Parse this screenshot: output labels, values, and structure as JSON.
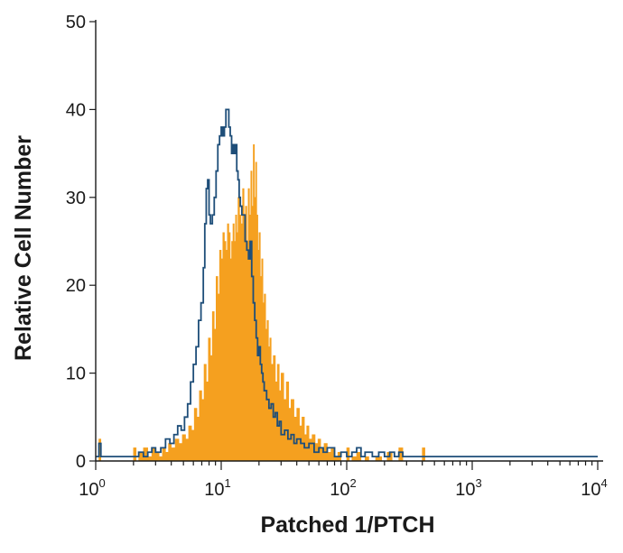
{
  "chart_data": {
    "type": "area",
    "title": "",
    "xlabel": "Patched 1/PTCH",
    "ylabel": "Relative Cell Number",
    "xscale": "log",
    "xlim": [
      1,
      10000
    ],
    "ylim": [
      0,
      50
    ],
    "grid": false,
    "legend": "none",
    "x_tick_labels": [
      {
        "base": "10",
        "exp": "0",
        "value": 1
      },
      {
        "base": "10",
        "exp": "1",
        "value": 10
      },
      {
        "base": "10",
        "exp": "2",
        "value": 100
      },
      {
        "base": "10",
        "exp": "3",
        "value": 1000
      },
      {
        "base": "10",
        "exp": "4",
        "value": 10000
      }
    ],
    "y_ticks": [
      0,
      10,
      20,
      30,
      40,
      50
    ],
    "series": [
      {
        "style": "filled",
        "color": "#F5A01F",
        "points": [
          [
            1.0,
            0
          ],
          [
            1.03,
            0
          ],
          [
            1.06,
            2.5
          ],
          [
            1.1,
            0
          ],
          [
            1.5,
            0
          ],
          [
            1.9,
            0
          ],
          [
            2.0,
            1.5
          ],
          [
            2.1,
            0
          ],
          [
            2.2,
            1
          ],
          [
            2.4,
            1.5
          ],
          [
            2.6,
            0.5
          ],
          [
            2.8,
            1.5
          ],
          [
            3.0,
            1
          ],
          [
            3.2,
            0.5
          ],
          [
            3.4,
            1.5
          ],
          [
            3.6,
            1
          ],
          [
            3.8,
            2
          ],
          [
            4.0,
            1.5
          ],
          [
            4.3,
            2.5
          ],
          [
            4.6,
            2
          ],
          [
            4.9,
            3
          ],
          [
            5.2,
            2.5
          ],
          [
            5.5,
            4
          ],
          [
            5.8,
            3.5
          ],
          [
            6.1,
            6
          ],
          [
            6.4,
            5
          ],
          [
            6.7,
            8
          ],
          [
            7.0,
            7
          ],
          [
            7.3,
            11
          ],
          [
            7.6,
            9
          ],
          [
            7.9,
            14
          ],
          [
            8.2,
            12
          ],
          [
            8.5,
            17
          ],
          [
            8.8,
            15
          ],
          [
            9.1,
            21
          ],
          [
            9.4,
            19
          ],
          [
            9.7,
            24
          ],
          [
            10.0,
            23
          ],
          [
            10.3,
            26
          ],
          [
            10.6,
            25
          ],
          [
            10.9,
            24
          ],
          [
            11.2,
            27
          ],
          [
            11.5,
            26
          ],
          [
            11.8,
            23
          ],
          [
            12.1,
            25
          ],
          [
            12.4,
            27
          ],
          [
            12.7,
            25
          ],
          [
            13.0,
            28
          ],
          [
            13.3,
            26
          ],
          [
            13.6,
            30
          ],
          [
            14.0,
            28
          ],
          [
            14.4,
            27
          ],
          [
            14.8,
            31
          ],
          [
            15.2,
            28
          ],
          [
            15.6,
            29
          ],
          [
            16.0,
            25
          ],
          [
            16.4,
            31
          ],
          [
            16.8,
            28
          ],
          [
            17.2,
            33
          ],
          [
            17.6,
            29
          ],
          [
            18.0,
            36
          ],
          [
            18.4,
            30
          ],
          [
            18.8,
            34
          ],
          [
            19.2,
            28
          ],
          [
            19.6,
            24
          ],
          [
            20.0,
            26
          ],
          [
            20.5,
            21
          ],
          [
            21.0,
            23
          ],
          [
            21.5,
            18
          ],
          [
            22.0,
            19
          ],
          [
            22.6,
            15
          ],
          [
            23.2,
            16
          ],
          [
            23.8,
            13
          ],
          [
            24.4,
            14
          ],
          [
            25.0,
            11
          ],
          [
            26.0,
            12
          ],
          [
            27.0,
            9
          ],
          [
            28.0,
            11
          ],
          [
            29.0,
            8
          ],
          [
            30.0,
            10
          ],
          [
            31.5,
            7
          ],
          [
            33.0,
            9
          ],
          [
            34.5,
            6
          ],
          [
            36.0,
            7
          ],
          [
            38.0,
            5
          ],
          [
            40.0,
            6
          ],
          [
            42.0,
            4
          ],
          [
            44.0,
            5
          ],
          [
            46.0,
            3
          ],
          [
            48.0,
            4
          ],
          [
            50.0,
            2.5
          ],
          [
            53.0,
            3
          ],
          [
            56.0,
            2
          ],
          [
            59.0,
            2.5
          ],
          [
            62.0,
            1.5
          ],
          [
            66.0,
            2
          ],
          [
            70.0,
            1
          ],
          [
            75.0,
            1.5
          ],
          [
            80.0,
            0.5
          ],
          [
            85.0,
            1
          ],
          [
            90.0,
            0
          ],
          [
            100.0,
            1.5
          ],
          [
            105.0,
            0
          ],
          [
            110.0,
            0.5
          ],
          [
            120.0,
            1
          ],
          [
            130.0,
            0
          ],
          [
            140.0,
            0.5
          ],
          [
            150.0,
            0
          ],
          [
            170.0,
            0.5
          ],
          [
            190.0,
            0
          ],
          [
            210.0,
            1
          ],
          [
            230.0,
            0
          ],
          [
            260.0,
            1.5
          ],
          [
            280.0,
            0
          ],
          [
            320.0,
            0
          ],
          [
            350.0,
            0
          ],
          [
            400.0,
            1.5
          ],
          [
            420.0,
            0
          ],
          [
            10000,
            0
          ]
        ]
      },
      {
        "style": "outline",
        "color": "#1E4E79",
        "points": [
          [
            1.0,
            0.5
          ],
          [
            1.03,
            0.5
          ],
          [
            1.06,
            2
          ],
          [
            1.1,
            0.5
          ],
          [
            1.5,
            0.5
          ],
          [
            2.0,
            0.5
          ],
          [
            2.2,
            1
          ],
          [
            2.4,
            0.5
          ],
          [
            2.6,
            1
          ],
          [
            2.8,
            1.5
          ],
          [
            3.0,
            1
          ],
          [
            3.3,
            1.5
          ],
          [
            3.6,
            2.5
          ],
          [
            3.9,
            2
          ],
          [
            4.2,
            3
          ],
          [
            4.5,
            4
          ],
          [
            4.8,
            3.5
          ],
          [
            5.1,
            5
          ],
          [
            5.4,
            6.5
          ],
          [
            5.7,
            9
          ],
          [
            6.0,
            11
          ],
          [
            6.3,
            13
          ],
          [
            6.6,
            16
          ],
          [
            6.9,
            18
          ],
          [
            7.2,
            22
          ],
          [
            7.4,
            27
          ],
          [
            7.6,
            31
          ],
          [
            7.8,
            32
          ],
          [
            8.0,
            28
          ],
          [
            8.2,
            27
          ],
          [
            8.5,
            28
          ],
          [
            8.8,
            30
          ],
          [
            9.1,
            33
          ],
          [
            9.4,
            36
          ],
          [
            9.7,
            37
          ],
          [
            10.0,
            38
          ],
          [
            10.3,
            37
          ],
          [
            10.6,
            38
          ],
          [
            10.9,
            40
          ],
          [
            11.2,
            40
          ],
          [
            11.5,
            38
          ],
          [
            11.8,
            37
          ],
          [
            12.1,
            35
          ],
          [
            12.4,
            36
          ],
          [
            12.7,
            35
          ],
          [
            13.0,
            36
          ],
          [
            13.3,
            33
          ],
          [
            13.6,
            32
          ],
          [
            13.9,
            30
          ],
          [
            14.2,
            29
          ],
          [
            14.6,
            28
          ],
          [
            15.0,
            28
          ],
          [
            15.5,
            25
          ],
          [
            16.0,
            24
          ],
          [
            16.5,
            23
          ],
          [
            17.0,
            25
          ],
          [
            17.5,
            21
          ],
          [
            18.0,
            18
          ],
          [
            18.5,
            16
          ],
          [
            19.0,
            14
          ],
          [
            19.5,
            12
          ],
          [
            20.0,
            13
          ],
          [
            20.5,
            11
          ],
          [
            21.0,
            10
          ],
          [
            21.5,
            9
          ],
          [
            22.0,
            8
          ],
          [
            23.0,
            7
          ],
          [
            24.0,
            6
          ],
          [
            25.0,
            6.5
          ],
          [
            26.0,
            5
          ],
          [
            27.0,
            5.5
          ],
          [
            28.0,
            4
          ],
          [
            29.0,
            4.5
          ],
          [
            30.0,
            3
          ],
          [
            32.0,
            3.5
          ],
          [
            34.0,
            2.5
          ],
          [
            36.0,
            3
          ],
          [
            38.0,
            2
          ],
          [
            40.0,
            2.5
          ],
          [
            43.0,
            2
          ],
          [
            46.0,
            1.5
          ],
          [
            50.0,
            2
          ],
          [
            55.0,
            1
          ],
          [
            60.0,
            1.5
          ],
          [
            65.0,
            1
          ],
          [
            70.0,
            1.5
          ],
          [
            80.0,
            0.5
          ],
          [
            90.0,
            1
          ],
          [
            100.0,
            0.5
          ],
          [
            110.0,
            1
          ],
          [
            120.0,
            1.5
          ],
          [
            130.0,
            0.5
          ],
          [
            140.0,
            1
          ],
          [
            160.0,
            0.5
          ],
          [
            180.0,
            1
          ],
          [
            200.0,
            0.5
          ],
          [
            220.0,
            1
          ],
          [
            240.0,
            0.5
          ],
          [
            260.0,
            1
          ],
          [
            280.0,
            0.5
          ],
          [
            300.0,
            0.5
          ],
          [
            10000,
            0.5
          ]
        ]
      }
    ]
  }
}
